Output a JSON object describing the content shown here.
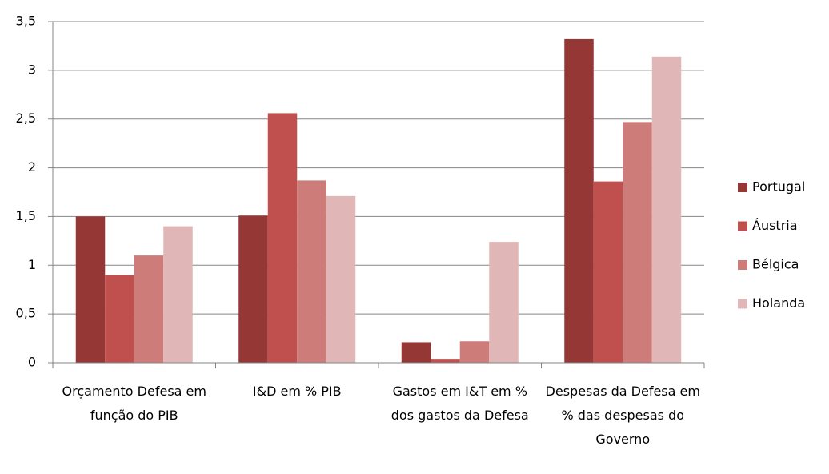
{
  "chart_data": {
    "type": "bar",
    "categories": [
      "Orçamento Defesa em função do PIB",
      "I&D em % PIB",
      "Gastos em I&T em % dos gastos da Defesa",
      "Despesas da Defesa em % das despesas do Governo"
    ],
    "series": [
      {
        "name": "Portugal",
        "color": "#953735",
        "values": [
          1.5,
          1.51,
          0.21,
          3.32
        ]
      },
      {
        "name": "Áustria",
        "color": "#c0504d",
        "values": [
          0.9,
          2.56,
          0.04,
          1.86
        ]
      },
      {
        "name": "Bélgica",
        "color": "#cd7c7a",
        "values": [
          1.1,
          1.87,
          0.22,
          2.47
        ]
      },
      {
        "name": "Holanda",
        "color": "#e0b7b6",
        "values": [
          1.4,
          1.71,
          1.24,
          3.14
        ]
      }
    ],
    "ylim": [
      0,
      3.5
    ],
    "yticks": [
      0,
      {
        "value": 0.5,
        "label": "0,5"
      },
      1,
      {
        "value": 1.5,
        "label": "1,5"
      },
      2,
      {
        "value": 2.5,
        "label": "2,5"
      },
      3,
      {
        "value": 3.5,
        "label": "3,5"
      }
    ],
    "grid": true,
    "legend": "right"
  }
}
